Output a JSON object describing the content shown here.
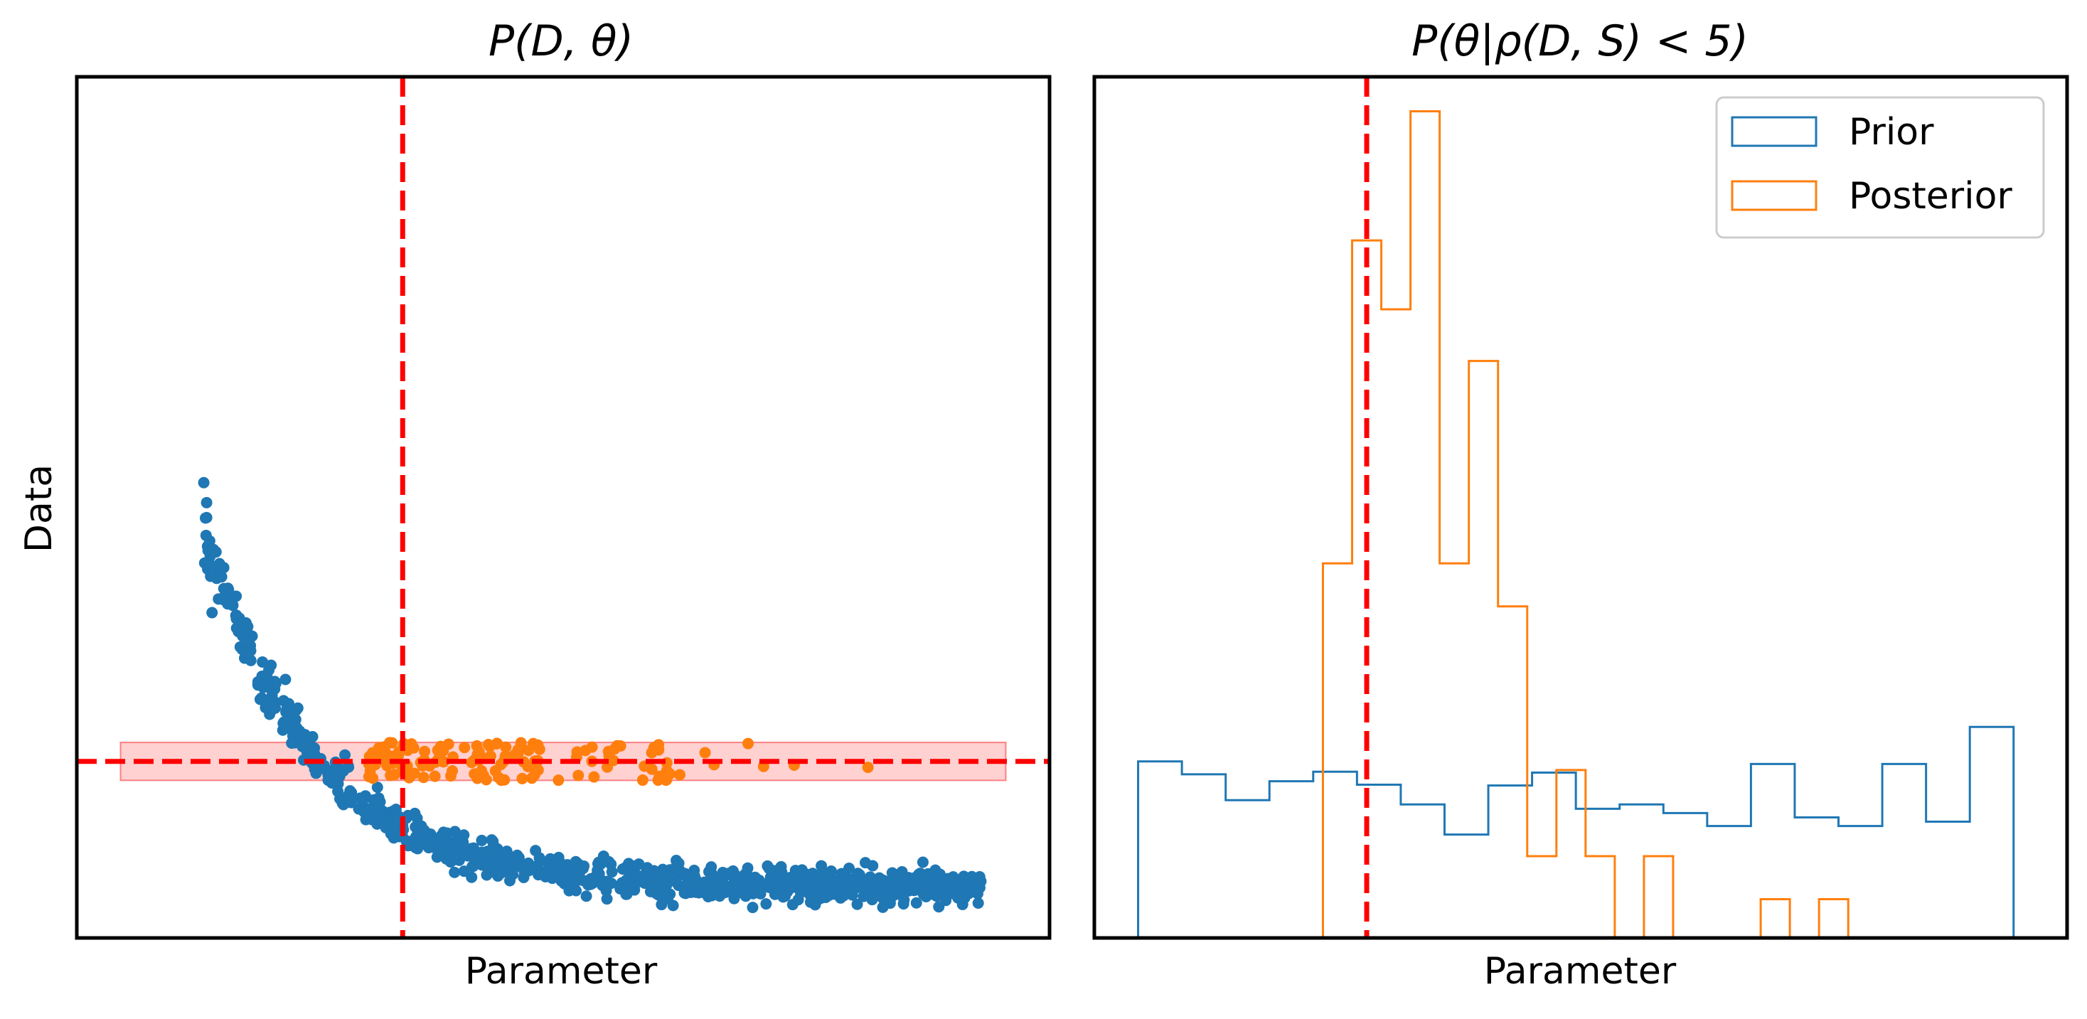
{
  "chart_data": [
    {
      "type": "scatter",
      "title": "P(D, θ)",
      "xlabel": "Parameter",
      "ylabel": "Data",
      "xlim": [
        0,
        1
      ],
      "ylim": [
        0,
        1
      ],
      "ticks": "none",
      "grid": false,
      "colors": {
        "prior": "#1f77b4",
        "posterior": "#ff7f0e",
        "reference": "#ff0000",
        "band": "#ff9999"
      },
      "true_parameter": 0.335,
      "observed_data": 0.205,
      "acceptance_band": [
        0.183,
        0.227
      ],
      "band_xrange": [
        0.045,
        0.955
      ],
      "prior_model": {
        "x_range": [
          0.13,
          0.93
        ],
        "y": "0.06 + 1.33*exp(-x/0.112)",
        "points": 900
      },
      "posterior_samples": {
        "x_range": [
          0.3,
          0.82
        ],
        "count": 140
      }
    },
    {
      "type": "histogram",
      "title": "P(θ|ρ(D, S) < 5)",
      "xlabel": "Parameter",
      "ylabel": "",
      "xlim": [
        0,
        1
      ],
      "ylim": [
        0,
        1
      ],
      "grid": false,
      "legend_position": "top-right",
      "true_parameter": 0.28,
      "series": [
        {
          "name": "Prior",
          "color": "#1f77b4",
          "bin_edges": [
            0.045,
            0.09,
            0.135,
            0.18,
            0.225,
            0.27,
            0.315,
            0.36,
            0.405,
            0.45,
            0.495,
            0.54,
            0.585,
            0.63,
            0.675,
            0.72,
            0.765,
            0.81,
            0.855,
            0.9,
            0.945
          ],
          "values": [
            0.205,
            0.19,
            0.16,
            0.182,
            0.193,
            0.178,
            0.155,
            0.12,
            0.177,
            0.192,
            0.15,
            0.155,
            0.145,
            0.13,
            0.202,
            0.14,
            0.13,
            0.202,
            0.135,
            0.245
          ]
        },
        {
          "name": "Posterior",
          "color": "#ff7f0e",
          "bin_edges": [
            0.235,
            0.265,
            0.295,
            0.325,
            0.355,
            0.385,
            0.415,
            0.445,
            0.475,
            0.505,
            0.535,
            0.565,
            0.595,
            0.625,
            0.655,
            0.685,
            0.715,
            0.745,
            0.775
          ],
          "values": [
            0.435,
            0.81,
            0.73,
            0.96,
            0.435,
            0.67,
            0.385,
            0.095,
            0.195,
            0.095,
            0.0,
            0.095,
            0.0,
            0.0,
            0.0,
            0.045,
            0.0,
            0.045
          ]
        }
      ]
    }
  ]
}
